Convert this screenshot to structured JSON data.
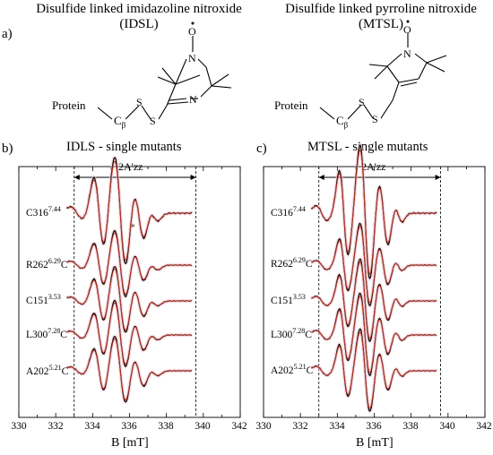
{
  "panel_a": {
    "letter": "a)",
    "left_title_line1": "Disulfide linked imidazoline nitroxide",
    "left_title_line2": "(IDSL)",
    "right_title_line1": "Disulfide linked pyrroline nitroxide",
    "right_title_line2": "(MTSL)",
    "left_chem": {
      "protein": "Protein",
      "cbeta": "C",
      "cbeta_sub": "β",
      "s1": "S",
      "s2": "S",
      "n_ring": "N",
      "n_top": "N",
      "o": "O"
    },
    "right_chem": {
      "protein": "Protein",
      "cbeta": "C",
      "cbeta_sub": "β",
      "s1": "S",
      "s2": "S",
      "n_top": "N",
      "o": "O"
    }
  },
  "panel_b": {
    "letter": "b)",
    "title": "IDLS - single mutants",
    "span_label": "2A'zz",
    "asterisk": "*",
    "mutants": [
      {
        "name": "C316",
        "sup": "7.44",
        "suffix": ""
      },
      {
        "name": "R262",
        "sup": "6.29",
        "suffix": "C"
      },
      {
        "name": "C151",
        "sup": "3.53",
        "suffix": ""
      },
      {
        "name": "L300",
        "sup": "7.28",
        "suffix": "C"
      },
      {
        "name": "A202",
        "sup": "5.21",
        "suffix": "C"
      }
    ],
    "x_ticks": [
      "330",
      "332",
      "334",
      "336",
      "338",
      "340",
      "342"
    ],
    "x_label": "B [mT]"
  },
  "panel_c": {
    "letter": "c)",
    "title": "MTSL - single mutants",
    "span_label": "2A'zz",
    "mutants": [
      {
        "name": "C316",
        "sup": "7.44",
        "suffix": ""
      },
      {
        "name": "R262",
        "sup": "6.29",
        "suffix": "C"
      },
      {
        "name": "C151",
        "sup": "3.53",
        "suffix": ""
      },
      {
        "name": "L300",
        "sup": "7.28",
        "suffix": "C"
      },
      {
        "name": "A202",
        "sup": "5.21",
        "suffix": "C"
      }
    ],
    "x_ticks": [
      "330",
      "332",
      "334",
      "336",
      "338",
      "340",
      "342"
    ],
    "x_label": "B [mT]"
  },
  "colors": {
    "experiment": "#000000",
    "simulation": "#c0392b",
    "glow": "#f2c6cf"
  },
  "x_range": [
    330,
    342
  ],
  "dashed_lines_at": [
    333.0,
    339.6
  ]
}
